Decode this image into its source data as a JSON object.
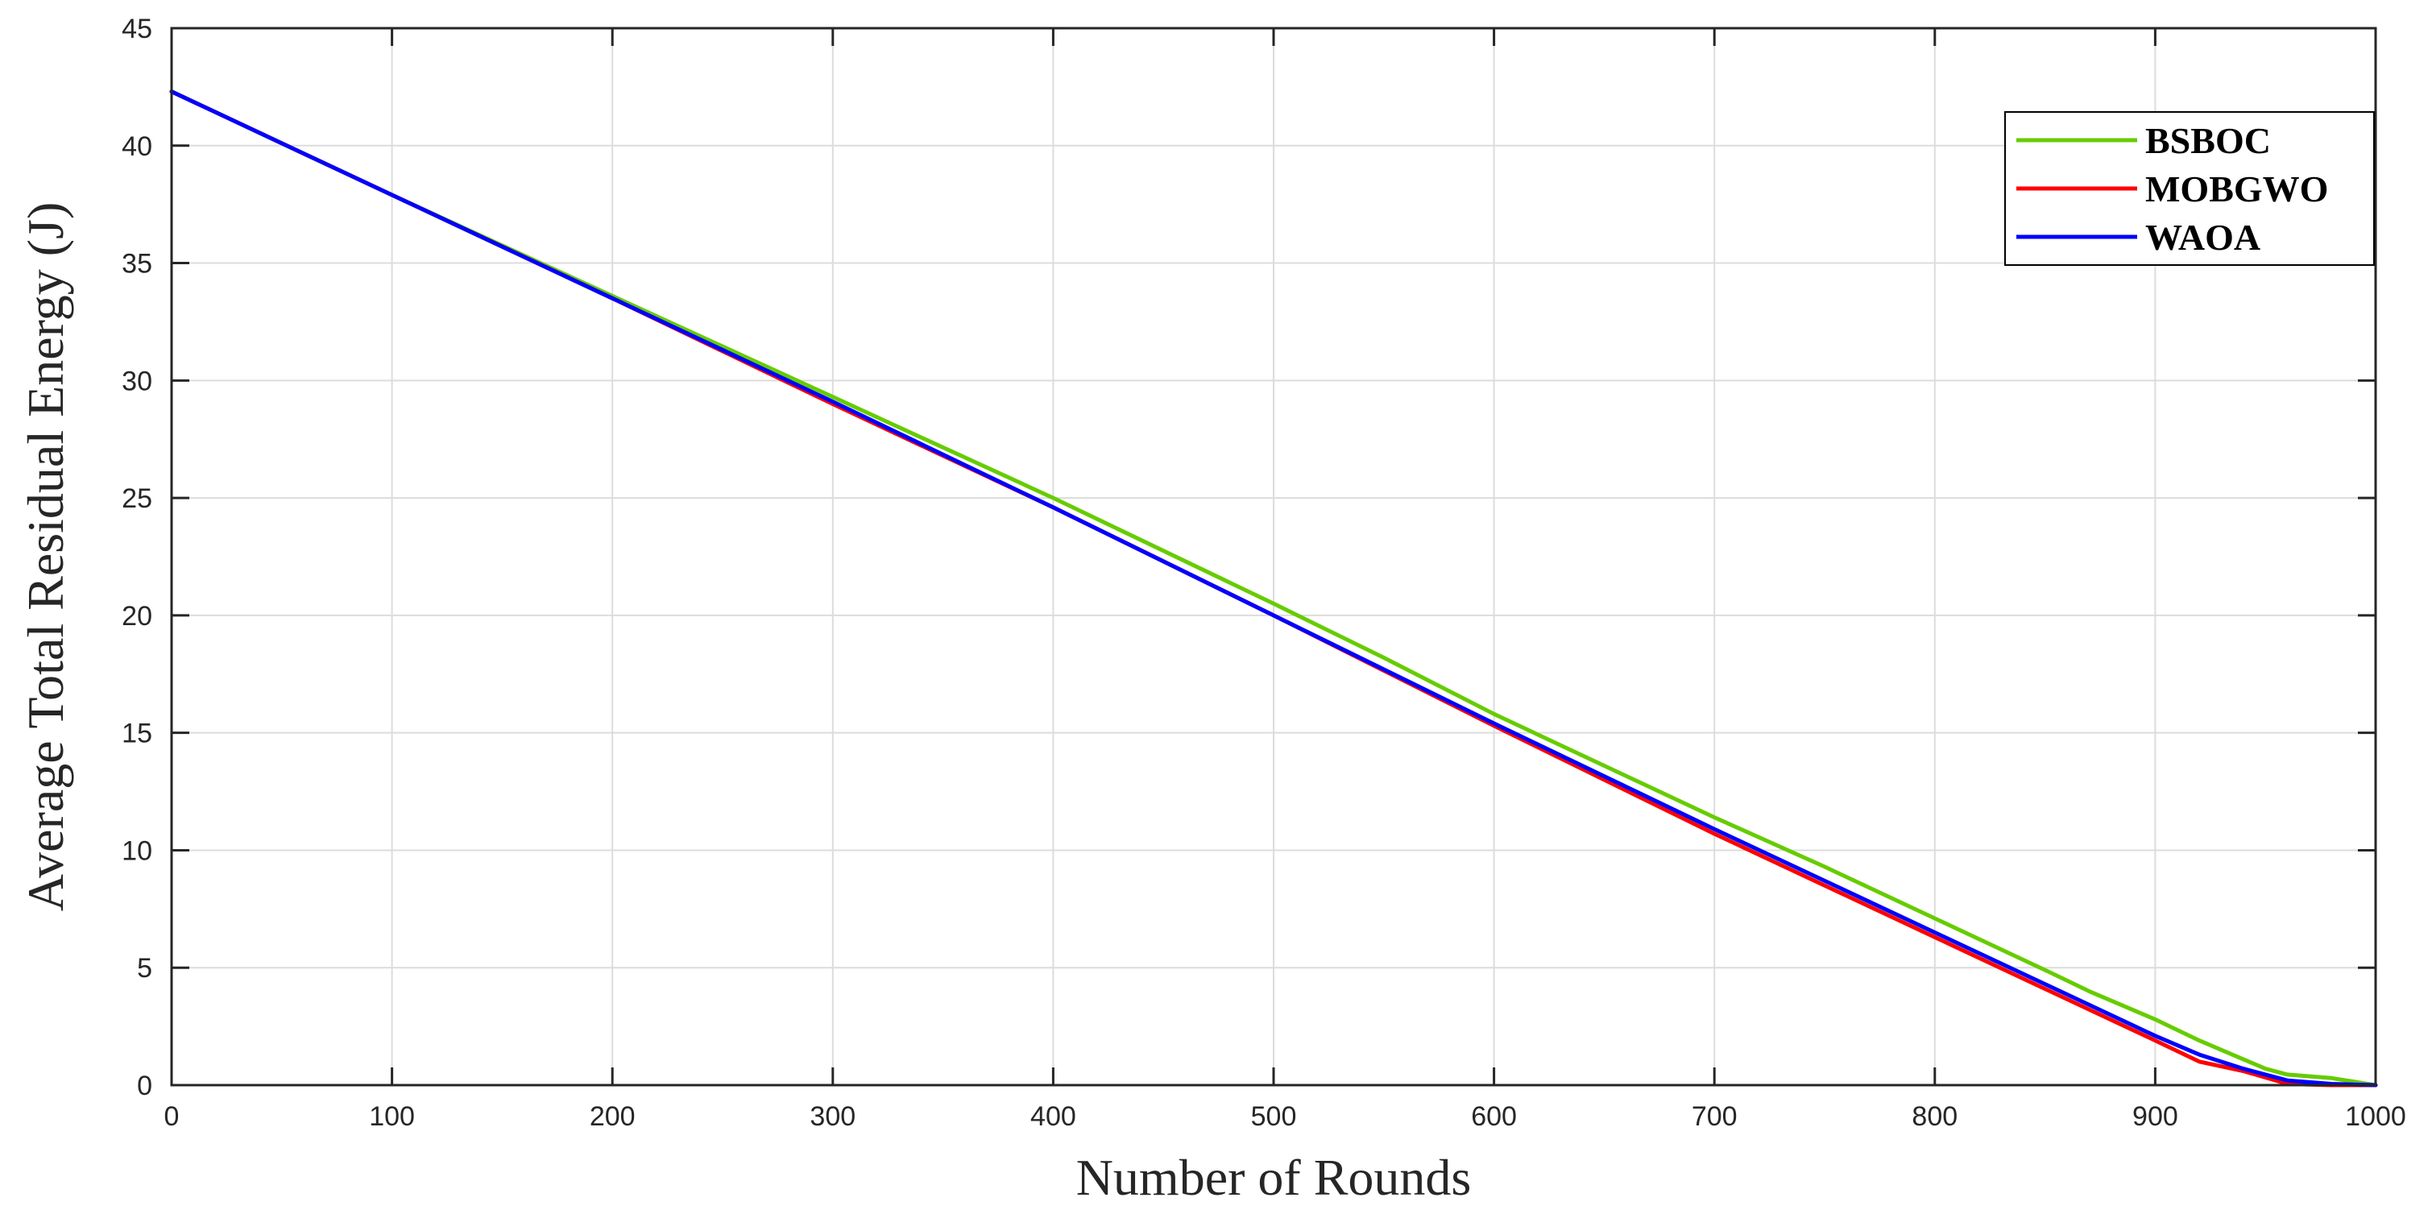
{
  "chart_data": {
    "type": "line",
    "title": "",
    "xlabel": "Number of Rounds",
    "ylabel": "Average Total Residual Energy (J)",
    "xlim": [
      0,
      1000
    ],
    "ylim": [
      0,
      45
    ],
    "xticks": [
      0,
      100,
      200,
      300,
      400,
      500,
      600,
      700,
      800,
      900,
      1000
    ],
    "yticks": [
      0,
      5,
      10,
      15,
      20,
      25,
      30,
      35,
      40,
      45
    ],
    "grid": true,
    "legend_position": "top-right",
    "series": [
      {
        "name": "BSBOC",
        "color": "#66cc00",
        "x": [
          0,
          100,
          200,
          300,
          400,
          500,
          550,
          600,
          650,
          700,
          750,
          800,
          850,
          870,
          900,
          920,
          940,
          950,
          960,
          980,
          1000
        ],
        "y": [
          42.3,
          37.9,
          33.6,
          29.3,
          25.0,
          20.5,
          18.2,
          15.8,
          13.6,
          11.4,
          9.3,
          7.1,
          4.9,
          4.0,
          2.8,
          1.9,
          1.1,
          0.7,
          0.45,
          0.3,
          0.0
        ]
      },
      {
        "name": "MOBGWO",
        "color": "#ff0000",
        "x": [
          0,
          100,
          200,
          300,
          400,
          500,
          600,
          700,
          800,
          850,
          900,
          920,
          940,
          960,
          980,
          1000
        ],
        "y": [
          42.3,
          37.9,
          33.5,
          29.0,
          24.6,
          20.0,
          15.3,
          10.7,
          6.3,
          4.1,
          1.9,
          1.0,
          0.6,
          0.05,
          0.0,
          0.0
        ]
      },
      {
        "name": "WAOA",
        "color": "#0000ff",
        "x": [
          0,
          100,
          200,
          300,
          400,
          500,
          600,
          700,
          800,
          850,
          900,
          920,
          940,
          960,
          980,
          1000
        ],
        "y": [
          42.3,
          37.9,
          33.5,
          29.1,
          24.6,
          20.0,
          15.4,
          10.9,
          6.5,
          4.3,
          2.1,
          1.3,
          0.7,
          0.2,
          0.05,
          0.0
        ]
      }
    ]
  }
}
